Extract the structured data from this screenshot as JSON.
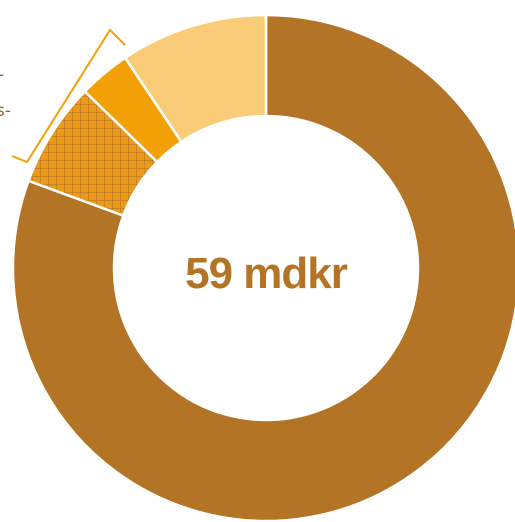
{
  "chart_data": {
    "type": "pie",
    "donut": true,
    "center_label": "59 mdkr",
    "slices": [
      {
        "value": 80.6,
        "color": "#B37525",
        "pattern": "solid"
      },
      {
        "value": 6.7,
        "color": "#EE9A19",
        "pattern": "crosshatch"
      },
      {
        "value": 3.3,
        "color": "#F3A007",
        "pattern": "solid"
      },
      {
        "value": 9.4,
        "color": "#FACC78",
        "pattern": "solid"
      }
    ],
    "bracket_color": "#F3A007",
    "cut_labels": [
      "-",
      "s-"
    ]
  }
}
